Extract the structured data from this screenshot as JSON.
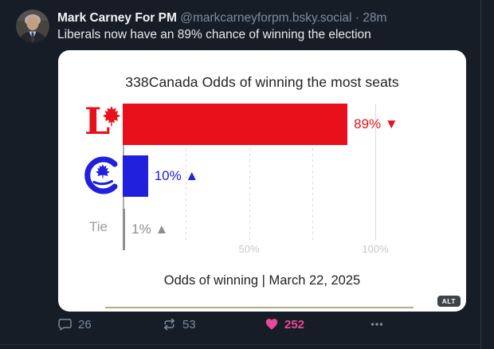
{
  "theme": {
    "background": "#161d27",
    "card_background": "#ffffff",
    "like_pink": "#ec4899",
    "liberal_red": "#e8101b",
    "conservative_blue": "#2020dd",
    "tie_gray": "#8f8f8f"
  },
  "post": {
    "author": {
      "display_name": "Mark Carney For PM",
      "handle": "@markcarneyforpm.bsky.social",
      "separator": "·",
      "timestamp": "28m"
    },
    "text": "Liberals now have an 89% chance of winning the election",
    "image_alt_badge": "ALT",
    "actions": {
      "reply_count": "26",
      "repost_count": "53",
      "like_count": "252"
    }
  },
  "chart_data": {
    "type": "bar",
    "orientation": "horizontal",
    "title": "338Canada Odds of winning the most seats",
    "caption": "Odds of winning | March 22, 2025",
    "xlim": [
      0,
      100
    ],
    "x_ticks": [
      {
        "value": 50,
        "label": "50%"
      },
      {
        "value": 100,
        "label": "100%"
      }
    ],
    "gridlines_pct": [
      25,
      50,
      75,
      100
    ],
    "categories": [
      "Liberal",
      "Conservative",
      "Tie"
    ],
    "values": [
      89,
      10,
      1
    ],
    "rows": [
      {
        "party": "Liberal",
        "value": 89,
        "label": "89% ▼",
        "trend": "down",
        "color": "#e8101b"
      },
      {
        "party": "Conservative",
        "value": 10,
        "label": "10% ▲",
        "trend": "up",
        "color": "#2020dd"
      },
      {
        "party": "Tie",
        "value": 1,
        "label": "1% ▲",
        "trend": "up",
        "color": "#8f8f8f"
      }
    ]
  }
}
